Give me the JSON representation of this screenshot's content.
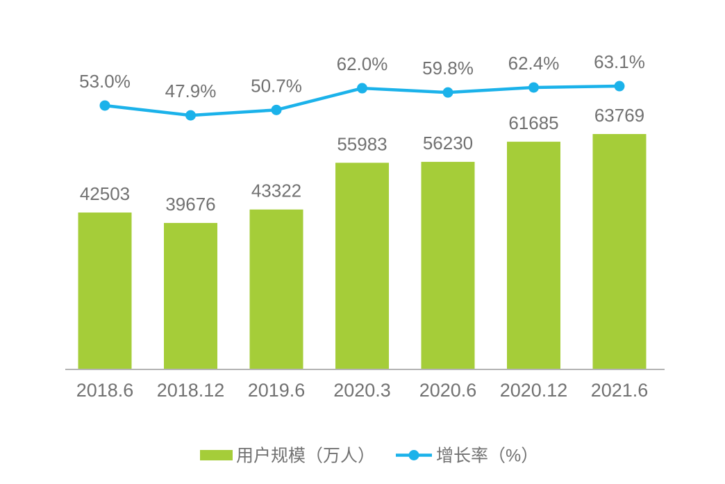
{
  "chart_data": {
    "type": "combo-bar-line",
    "title": "",
    "xlabel": "",
    "ylabel": "",
    "grid": false,
    "legend_position": "bottom",
    "categories": [
      "2018.6",
      "2018.12",
      "2019.6",
      "2020.3",
      "2020.6",
      "2020.12",
      "2021.6"
    ],
    "series": [
      {
        "name": "用户规模（万人）",
        "type": "bar",
        "values": [
          42503,
          39676,
          43322,
          55983,
          56230,
          61685,
          63769
        ],
        "color": "#a5cd39",
        "data_labels": [
          "42503",
          "39676",
          "43322",
          "55983",
          "56230",
          "61685",
          "63769"
        ]
      },
      {
        "name": "增长率（%）",
        "type": "line",
        "values": [
          53.0,
          47.9,
          50.7,
          62.0,
          59.8,
          62.4,
          63.1
        ],
        "color": "#1bb2ea",
        "data_labels": [
          "53.0%",
          "47.9%",
          "50.7%",
          "62.0%",
          "59.8%",
          "62.4%",
          "63.1%"
        ]
      }
    ],
    "bar_ylim": [
      0,
      70000
    ],
    "line_ylim": [
      0,
      100
    ],
    "legend": [
      "用户规模（万人）",
      "增长率（%）"
    ]
  },
  "style": {
    "bar_color": "#a5cd39",
    "line_color": "#1bb2ea",
    "text_color": "#717171",
    "axis_color": "#b3b3b3",
    "background": "#ffffff"
  }
}
